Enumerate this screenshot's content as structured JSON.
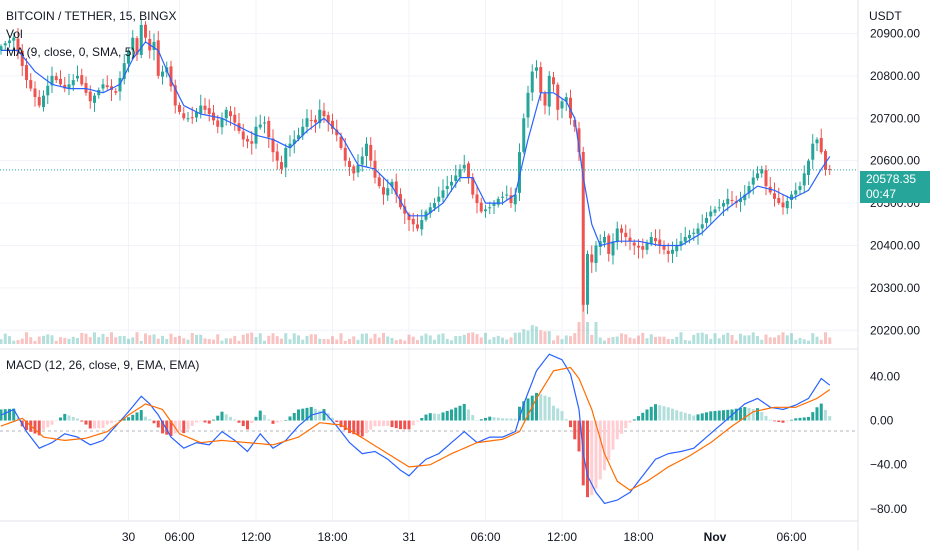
{
  "header": {
    "title": "BITCOIN / TETHER, 15, BINGX",
    "vol_label": "Vol",
    "ma_label": "MA (9, close, 0, SMA, 5)",
    "currency": "USDT",
    "macd_label": "MACD (12, 26, close, 9, EMA, EMA)"
  },
  "price_tag": {
    "price": "20578.35",
    "countdown": "00:47"
  },
  "colors": {
    "up": "#26a69a",
    "down": "#ef5350",
    "ma": "#2962ff",
    "macd": "#2962ff",
    "signal": "#ff6d00",
    "last_price_line": "#26a69a"
  },
  "chart_data": {
    "type": "candlestick",
    "price_axis": {
      "ticks": [
        "20200.00",
        "20300.00",
        "20400.00",
        "20500.00",
        "20600.00",
        "20700.00",
        "20800.00",
        "20900.00"
      ],
      "range": [
        20170,
        20960
      ]
    },
    "macd_axis": {
      "ticks": [
        "40.00",
        "0.00",
        "−40.00",
        "−80.00"
      ],
      "range": [
        -90,
        62
      ]
    },
    "time_ticks": [
      {
        "label": "30",
        "x": 30
      },
      {
        "label": "06:00",
        "x": 42
      },
      {
        "label": "12:00",
        "x": 60
      },
      {
        "label": "18:00",
        "x": 78
      },
      {
        "label": "31",
        "x": 96
      },
      {
        "label": "06:00",
        "x": 114
      },
      {
        "label": "12:00",
        "x": 132
      },
      {
        "label": "18:00",
        "x": 150
      },
      {
        "label": "Nov",
        "x": 168
      },
      {
        "label": "06:00",
        "x": 186
      }
    ],
    "close_anchors": [
      [
        0,
        20870
      ],
      [
        3,
        20890
      ],
      [
        6,
        20790
      ],
      [
        9,
        20730
      ],
      [
        12,
        20800
      ],
      [
        15,
        20770
      ],
      [
        18,
        20800
      ],
      [
        21,
        20740
      ],
      [
        24,
        20780
      ],
      [
        27,
        20760
      ],
      [
        29,
        20830
      ],
      [
        30,
        20860
      ],
      [
        31,
        20890
      ],
      [
        32,
        20850
      ],
      [
        33,
        20920
      ],
      [
        35,
        20860
      ],
      [
        36,
        20880
      ],
      [
        37,
        20800
      ],
      [
        39,
        20820
      ],
      [
        41,
        20730
      ],
      [
        43,
        20700
      ],
      [
        45,
        20700
      ],
      [
        47,
        20730
      ],
      [
        49,
        20710
      ],
      [
        51,
        20680
      ],
      [
        53,
        20720
      ],
      [
        55,
        20690
      ],
      [
        57,
        20650
      ],
      [
        59,
        20640
      ],
      [
        60,
        20680
      ],
      [
        62,
        20690
      ],
      [
        64,
        20620
      ],
      [
        66,
        20580
      ],
      [
        67,
        20630
      ],
      [
        68,
        20640
      ],
      [
        70,
        20660
      ],
      [
        72,
        20700
      ],
      [
        74,
        20690
      ],
      [
        75,
        20720
      ],
      [
        77,
        20690
      ],
      [
        79,
        20660
      ],
      [
        81,
        20600
      ],
      [
        83,
        20570
      ],
      [
        85,
        20610
      ],
      [
        86,
        20640
      ],
      [
        88,
        20560
      ],
      [
        90,
        20520
      ],
      [
        92,
        20550
      ],
      [
        94,
        20490
      ],
      [
        96,
        20460
      ],
      [
        98,
        20440
      ],
      [
        100,
        20480
      ],
      [
        102,
        20500
      ],
      [
        104,
        20530
      ],
      [
        106,
        20550
      ],
      [
        108,
        20580
      ],
      [
        109,
        20590
      ],
      [
        110,
        20560
      ],
      [
        111,
        20520
      ],
      [
        113,
        20480
      ],
      [
        115,
        20490
      ],
      [
        117,
        20510
      ],
      [
        119,
        20520
      ],
      [
        120,
        20500
      ],
      [
        121,
        20520
      ],
      [
        122,
        20620
      ],
      [
        123,
        20700
      ],
      [
        124,
        20760
      ],
      [
        125,
        20810
      ],
      [
        126,
        20820
      ],
      [
        127,
        20760
      ],
      [
        128,
        20730
      ],
      [
        129,
        20800
      ],
      [
        130,
        20780
      ],
      [
        131,
        20720
      ],
      [
        132,
        20740
      ],
      [
        133,
        20750
      ],
      [
        134,
        20700
      ],
      [
        135,
        20680
      ],
      [
        136,
        20620
      ],
      [
        137,
        20260
      ],
      [
        138,
        20380
      ],
      [
        139,
        20360
      ],
      [
        140,
        20400
      ],
      [
        142,
        20420
      ],
      [
        143,
        20380
      ],
      [
        145,
        20440
      ],
      [
        147,
        20420
      ],
      [
        149,
        20400
      ],
      [
        151,
        20390
      ],
      [
        153,
        20420
      ],
      [
        155,
        20400
      ],
      [
        157,
        20380
      ],
      [
        159,
        20400
      ],
      [
        161,
        20420
      ],
      [
        163,
        20430
      ],
      [
        165,
        20450
      ],
      [
        167,
        20480
      ],
      [
        169,
        20490
      ],
      [
        171,
        20510
      ],
      [
        173,
        20500
      ],
      [
        175,
        20520
      ],
      [
        177,
        20560
      ],
      [
        179,
        20580
      ],
      [
        180,
        20540
      ],
      [
        182,
        20510
      ],
      [
        184,
        20490
      ],
      [
        186,
        20520
      ],
      [
        188,
        20540
      ],
      [
        190,
        20600
      ],
      [
        191,
        20640
      ],
      [
        192,
        20650
      ],
      [
        193,
        20620
      ],
      [
        194,
        20578
      ]
    ],
    "ma_anchors": [
      [
        0,
        20860
      ],
      [
        4,
        20860
      ],
      [
        8,
        20810
      ],
      [
        12,
        20780
      ],
      [
        16,
        20770
      ],
      [
        20,
        20770
      ],
      [
        24,
        20760
      ],
      [
        28,
        20780
      ],
      [
        31,
        20840
      ],
      [
        34,
        20880
      ],
      [
        37,
        20860
      ],
      [
        40,
        20790
      ],
      [
        43,
        20730
      ],
      [
        47,
        20710
      ],
      [
        52,
        20700
      ],
      [
        56,
        20680
      ],
      [
        60,
        20660
      ],
      [
        64,
        20650
      ],
      [
        68,
        20630
      ],
      [
        72,
        20670
      ],
      [
        76,
        20700
      ],
      [
        80,
        20660
      ],
      [
        84,
        20590
      ],
      [
        88,
        20580
      ],
      [
        92,
        20540
      ],
      [
        96,
        20470
      ],
      [
        100,
        20470
      ],
      [
        104,
        20500
      ],
      [
        108,
        20560
      ],
      [
        111,
        20560
      ],
      [
        114,
        20500
      ],
      [
        118,
        20500
      ],
      [
        121,
        20520
      ],
      [
        124,
        20650
      ],
      [
        127,
        20760
      ],
      [
        130,
        20760
      ],
      [
        133,
        20740
      ],
      [
        135,
        20700
      ],
      [
        137,
        20560
      ],
      [
        139,
        20450
      ],
      [
        141,
        20400
      ],
      [
        145,
        20410
      ],
      [
        150,
        20410
      ],
      [
        155,
        20400
      ],
      [
        160,
        20400
      ],
      [
        165,
        20430
      ],
      [
        170,
        20480
      ],
      [
        174,
        20510
      ],
      [
        178,
        20540
      ],
      [
        182,
        20530
      ],
      [
        186,
        20510
      ],
      [
        190,
        20530
      ],
      [
        193,
        20580
      ],
      [
        195,
        20610
      ]
    ],
    "macd_anchors": [
      [
        0,
        5
      ],
      [
        3,
        10
      ],
      [
        6,
        -10
      ],
      [
        9,
        -25
      ],
      [
        12,
        -20
      ],
      [
        15,
        -12
      ],
      [
        18,
        -15
      ],
      [
        21,
        -22
      ],
      [
        24,
        -18
      ],
      [
        27,
        -5
      ],
      [
        30,
        8
      ],
      [
        33,
        22
      ],
      [
        35,
        15
      ],
      [
        37,
        5
      ],
      [
        40,
        -15
      ],
      [
        43,
        -25
      ],
      [
        46,
        -20
      ],
      [
        49,
        -22
      ],
      [
        52,
        -10
      ],
      [
        55,
        -18
      ],
      [
        58,
        -28
      ],
      [
        61,
        -12
      ],
      [
        64,
        -25
      ],
      [
        67,
        -18
      ],
      [
        70,
        -5
      ],
      [
        73,
        5
      ],
      [
        76,
        8
      ],
      [
        79,
        -5
      ],
      [
        82,
        -20
      ],
      [
        85,
        -30
      ],
      [
        88,
        -28
      ],
      [
        91,
        -35
      ],
      [
        94,
        -45
      ],
      [
        96,
        -50
      ],
      [
        98,
        -42
      ],
      [
        100,
        -35
      ],
      [
        103,
        -30
      ],
      [
        106,
        -20
      ],
      [
        109,
        -10
      ],
      [
        112,
        -20
      ],
      [
        115,
        -15
      ],
      [
        118,
        -15
      ],
      [
        121,
        -10
      ],
      [
        123,
        15
      ],
      [
        126,
        45
      ],
      [
        129,
        60
      ],
      [
        132,
        55
      ],
      [
        134,
        42
      ],
      [
        136,
        10
      ],
      [
        137,
        -30
      ],
      [
        138,
        -50
      ],
      [
        140,
        -65
      ],
      [
        142,
        -75
      ],
      [
        145,
        -72
      ],
      [
        148,
        -65
      ],
      [
        151,
        -50
      ],
      [
        154,
        -35
      ],
      [
        157,
        -30
      ],
      [
        160,
        -28
      ],
      [
        163,
        -25
      ],
      [
        166,
        -15
      ],
      [
        169,
        -5
      ],
      [
        172,
        5
      ],
      [
        175,
        15
      ],
      [
        178,
        20
      ],
      [
        181,
        12
      ],
      [
        184,
        10
      ],
      [
        187,
        14
      ],
      [
        190,
        20
      ],
      [
        193,
        38
      ],
      [
        195,
        32
      ]
    ],
    "signal_anchors": [
      [
        0,
        -5
      ],
      [
        5,
        2
      ],
      [
        10,
        -15
      ],
      [
        15,
        -18
      ],
      [
        20,
        -16
      ],
      [
        25,
        -10
      ],
      [
        30,
        5
      ],
      [
        34,
        15
      ],
      [
        38,
        10
      ],
      [
        42,
        -12
      ],
      [
        47,
        -20
      ],
      [
        52,
        -18
      ],
      [
        58,
        -20
      ],
      [
        64,
        -22
      ],
      [
        70,
        -15
      ],
      [
        75,
        -2
      ],
      [
        80,
        -4
      ],
      [
        86,
        -18
      ],
      [
        91,
        -30
      ],
      [
        96,
        -42
      ],
      [
        101,
        -40
      ],
      [
        106,
        -30
      ],
      [
        112,
        -20
      ],
      [
        118,
        -17
      ],
      [
        122,
        -10
      ],
      [
        126,
        20
      ],
      [
        130,
        45
      ],
      [
        134,
        48
      ],
      [
        136,
        38
      ],
      [
        139,
        10
      ],
      [
        142,
        -30
      ],
      [
        145,
        -55
      ],
      [
        148,
        -63
      ],
      [
        152,
        -55
      ],
      [
        157,
        -42
      ],
      [
        162,
        -32
      ],
      [
        167,
        -20
      ],
      [
        172,
        -5
      ],
      [
        177,
        8
      ],
      [
        182,
        12
      ],
      [
        187,
        12
      ],
      [
        192,
        20
      ],
      [
        195,
        28
      ]
    ]
  }
}
